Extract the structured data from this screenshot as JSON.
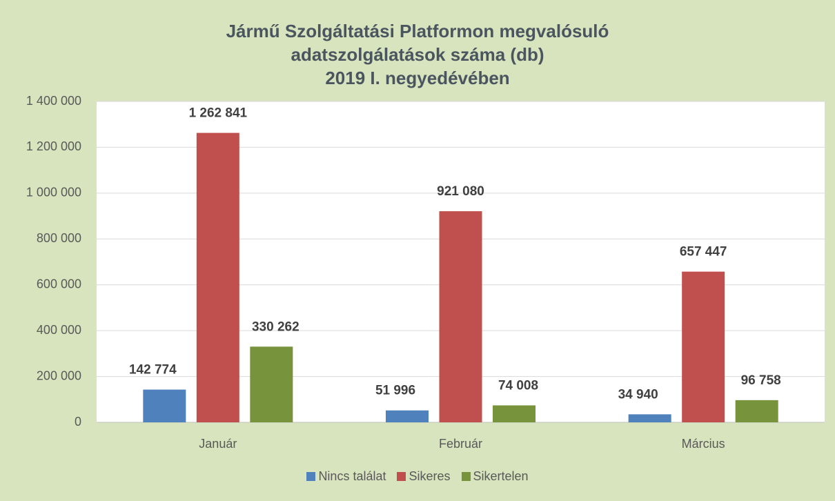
{
  "chart_data": {
    "type": "bar",
    "title": "Jármű Szolgáltatási Platformon megvalósuló\nadatszolgálatások száma (db)\n2019 I. negyedévében",
    "categories": [
      "Január",
      "Február",
      "Március"
    ],
    "series": [
      {
        "name": "Nincs találat",
        "color": "#4f81bd",
        "values": [
          142774,
          51996,
          34940
        ],
        "value_labels": [
          "142 774",
          "51 996",
          "34 940"
        ]
      },
      {
        "name": "Sikeres",
        "color": "#c0504d",
        "values": [
          1262841,
          921080,
          657447
        ],
        "value_labels": [
          "1 262 841",
          "921 080",
          "657 447"
        ]
      },
      {
        "name": "Sikertelen",
        "color": "#77933c",
        "values": [
          330262,
          74008,
          96758
        ],
        "value_labels": [
          "330 262",
          "74 008",
          "96 758"
        ]
      }
    ],
    "ylim": [
      0,
      1400000
    ],
    "yticks": [
      0,
      {
        "value": 200000,
        "label": "200 000"
      },
      {
        "value": 400000,
        "label": "400 000"
      },
      {
        "value": 600000,
        "label": "600 000"
      },
      {
        "value": 800000,
        "label": "800 000"
      },
      {
        "value": 1000000,
        "label": "1 000 000"
      },
      {
        "value": 1200000,
        "label": "1 200 000"
      },
      {
        "value": 1400000,
        "label": "1 400 000"
      }
    ],
    "grid": true,
    "legend": "bottom"
  }
}
